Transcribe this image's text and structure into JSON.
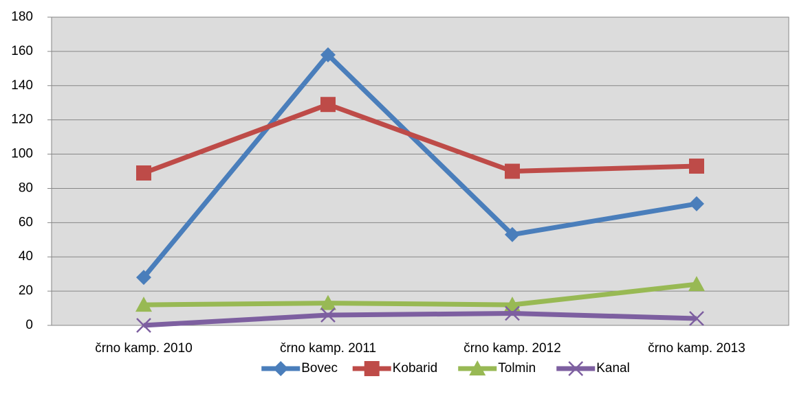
{
  "chart_data": {
    "type": "line",
    "categories": [
      "črno kamp. 2010",
      "črno kamp. 2011",
      "črno kamp. 2012",
      "črno kamp. 2013"
    ],
    "series": [
      {
        "name": "Bovec",
        "color": "#4a7ebb",
        "marker": "diamond",
        "values": [
          28,
          158,
          53,
          71
        ]
      },
      {
        "name": "Kobarid",
        "color": "#be4b48",
        "marker": "square",
        "values": [
          89,
          129,
          90,
          93
        ]
      },
      {
        "name": "Tolmin",
        "color": "#98b954",
        "marker": "triangle",
        "values": [
          12,
          13,
          12,
          24
        ]
      },
      {
        "name": "Kanal",
        "color": "#7d5fa0",
        "marker": "x",
        "values": [
          0,
          6,
          7,
          4
        ]
      }
    ],
    "ylim": [
      0,
      180
    ],
    "yticks": [
      0,
      20,
      40,
      60,
      80,
      100,
      120,
      140,
      160,
      180
    ],
    "grid": true,
    "legend": "bottom"
  }
}
